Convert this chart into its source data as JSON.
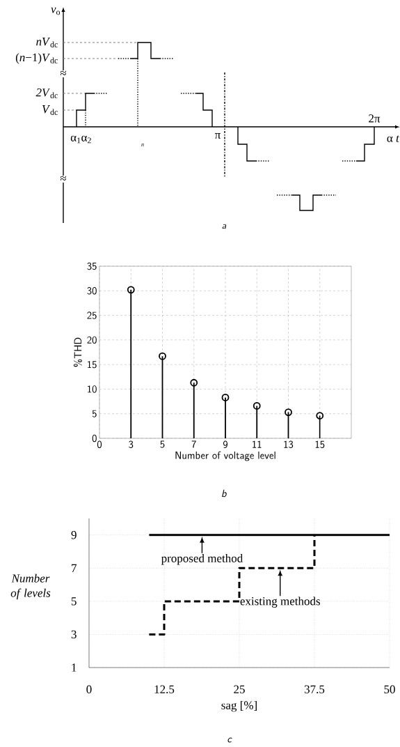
{
  "chart_data": [
    {
      "type": "other",
      "annotations": [
        "*v*$_{o}$",
        "*nV*$_{dc}$",
        "(*n*−1)*V*$_{dc}$",
        "≈",
        "*2V*$_{dc}$",
        "*V*$_{dc}$",
        "≈",
        "α$_{1}$α$_{2}$",
        "*n*",
        "π",
        "2π",
        "α *t*",
        "*a*"
      ]
    },
    {
      "type": "lollipop",
      "categories": [
        "0",
        "3",
        "5",
        "7",
        "9",
        "11",
        "13",
        "15"
      ],
      "values": [
        null,
        30.2,
        16.7,
        11.3,
        8.3,
        6.6,
        5.3,
        4.6
      ],
      "color": "#000000",
      "marker": "circle",
      "xlabel": "Number of voltage level",
      "ylabel": "%THD",
      "ylim": [
        0,
        35
      ],
      "yticks": [
        0,
        5,
        10,
        15,
        20,
        25,
        30,
        35
      ],
      "grid": true,
      "annotations": [
        "*b*"
      ]
    },
    {
      "type": "line",
      "xlim": [
        0,
        50
      ],
      "xticks": [
        0,
        12.5,
        25,
        37.5,
        50
      ],
      "ylim": [
        1,
        10
      ],
      "yticks": [
        1,
        3,
        5,
        7,
        9
      ],
      "grid": true,
      "xlabel": "sag [%]",
      "ylabel": "Number of levels",
      "series": [
        {
          "type": "line",
          "x": [
            10,
            50
          ],
          "values": [
            9,
            9
          ],
          "color": "#000000",
          "line_style": "solid"
        },
        {
          "type": "step",
          "x": [
            10,
            12.5,
            25,
            37.5
          ],
          "values": [
            3,
            5,
            7,
            9
          ],
          "color": "#000000",
          "line_style": "dashed"
        }
      ],
      "annotations": [
        {
          "text": "proposed method",
          "x": 18.8,
          "y": 9
        },
        {
          "text": "existing methods",
          "x": 31.8,
          "y": 7
        },
        "*c*"
      ]
    }
  ]
}
